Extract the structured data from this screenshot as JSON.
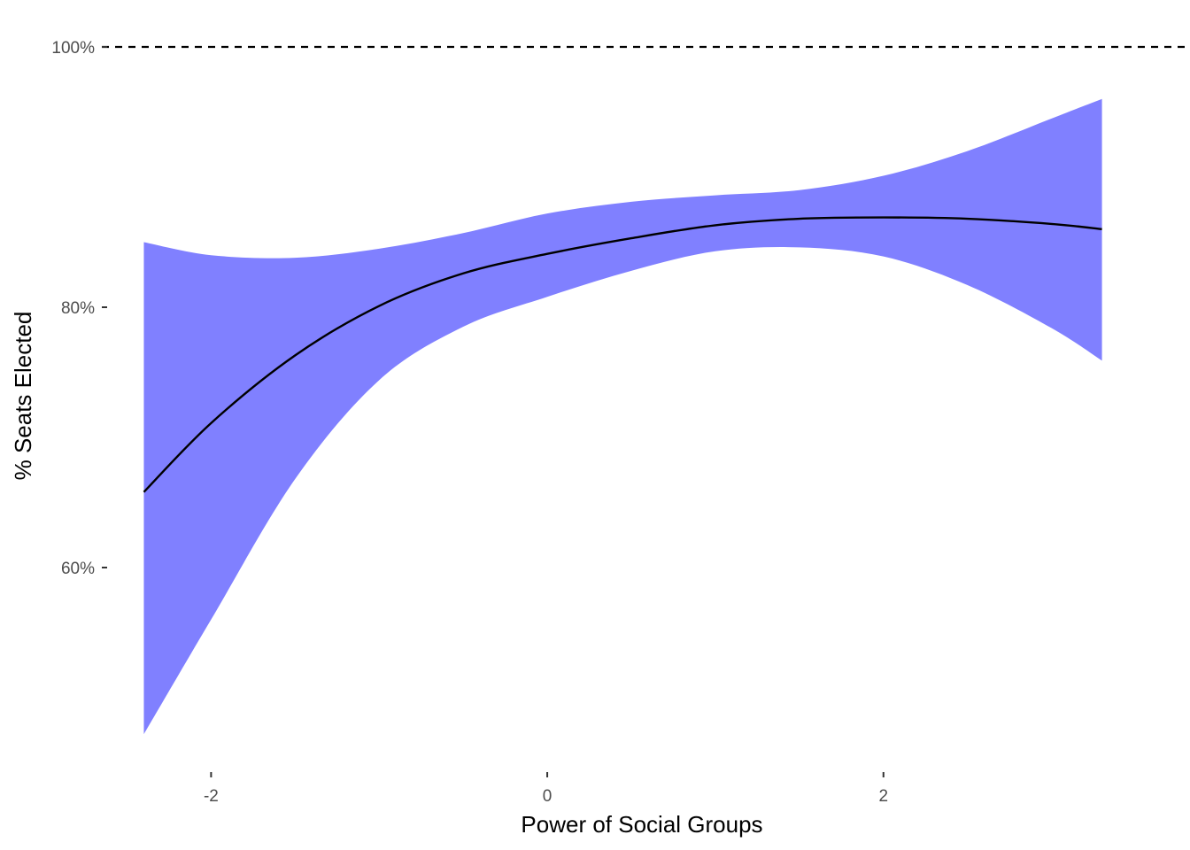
{
  "chart_data": {
    "type": "line",
    "title": "",
    "xlabel": "Power of Social Groups",
    "ylabel": "% Seats Elected",
    "xlim": [
      -2.65,
      3.75
    ],
    "ylim": [
      0.465,
      1.0
    ],
    "x_ticks": [
      -2,
      0,
      2
    ],
    "x_tick_labels": [
      "-2",
      "0",
      "2"
    ],
    "y_ticks": [
      0.6,
      0.8,
      1.0
    ],
    "y_tick_labels": [
      "60%",
      "80%",
      "100%"
    ],
    "grid": false,
    "legend": "none",
    "reference_line": {
      "y": 1.0,
      "style": "dashed",
      "color": "#000000"
    },
    "band_color": "#8080ff",
    "line_color": "#000000",
    "series": [
      {
        "x": [
          -2.4,
          -2.0,
          -1.5,
          -1.0,
          -0.5,
          0.0,
          0.5,
          1.0,
          1.5,
          2.0,
          2.5,
          3.0,
          3.3
        ],
        "y": [
          0.658,
          0.711,
          0.763,
          0.801,
          0.826,
          0.841,
          0.853,
          0.863,
          0.868,
          0.869,
          0.868,
          0.864,
          0.86
        ],
        "lower": [
          0.472,
          0.56,
          0.668,
          0.744,
          0.785,
          0.808,
          0.828,
          0.843,
          0.846,
          0.839,
          0.817,
          0.784,
          0.759
        ],
        "upper": [
          0.85,
          0.84,
          0.838,
          0.845,
          0.857,
          0.872,
          0.881,
          0.886,
          0.89,
          0.901,
          0.92,
          0.945,
          0.96
        ]
      }
    ]
  }
}
